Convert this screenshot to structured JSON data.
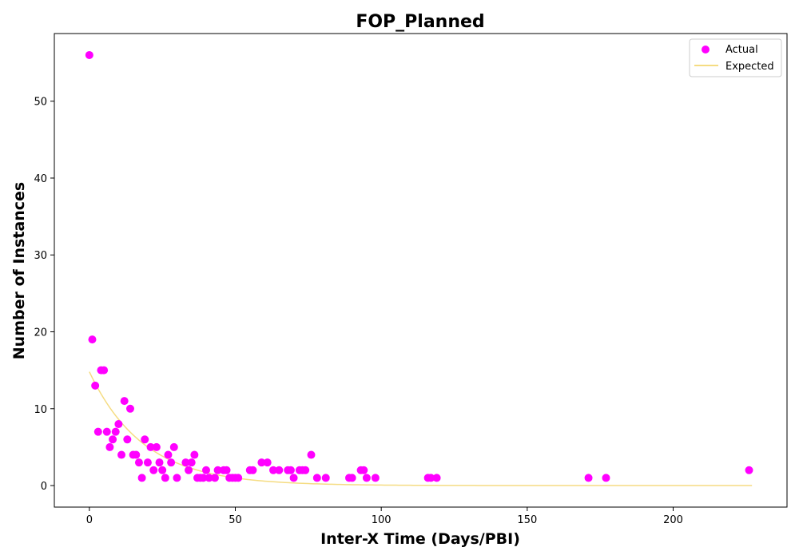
{
  "chart_data": {
    "type": "scatter",
    "title": "FOP_Planned",
    "xlabel": "Inter-X Time (Days/PBI)",
    "ylabel": "Number of Instances",
    "xlim": [
      -12,
      239
    ],
    "ylim": [
      -2.8,
      58.8
    ],
    "xticks": [
      0,
      50,
      100,
      150,
      200
    ],
    "yticks": [
      0,
      10,
      20,
      30,
      40,
      50
    ],
    "grid": false,
    "legend_position": "top-right",
    "colors": {
      "actual": "#ff00ff",
      "expected": "#f5dc82"
    },
    "series": [
      {
        "name": "Actual",
        "kind": "scatter",
        "x": [
          0,
          1,
          2,
          3,
          4,
          5,
          6,
          7,
          8,
          9,
          10,
          11,
          12,
          13,
          14,
          15,
          16,
          17,
          18,
          19,
          20,
          21,
          22,
          23,
          24,
          25,
          26,
          27,
          28,
          29,
          30,
          33,
          34,
          35,
          36,
          37,
          38,
          39,
          40,
          41,
          43,
          44,
          46,
          47,
          48,
          49,
          50,
          51,
          55,
          56,
          59,
          61,
          63,
          65,
          68,
          69,
          70,
          72,
          73,
          74,
          76,
          78,
          81,
          89,
          90,
          93,
          94,
          95,
          98,
          116,
          117,
          119,
          171,
          177,
          226
        ],
        "y": [
          56,
          19,
          13,
          7,
          15,
          15,
          7,
          5,
          6,
          7,
          8,
          4,
          11,
          6,
          10,
          4,
          4,
          3,
          1,
          6,
          3,
          5,
          2,
          5,
          3,
          2,
          1,
          4,
          3,
          5,
          1,
          3,
          2,
          3,
          4,
          1,
          1,
          1,
          2,
          1,
          1,
          2,
          2,
          2,
          1,
          1,
          1,
          1,
          2,
          2,
          3,
          3,
          2,
          2,
          2,
          2,
          1,
          2,
          2,
          2,
          4,
          1,
          1,
          1,
          1,
          2,
          2,
          1,
          1,
          1,
          1,
          1,
          1,
          1,
          2
        ]
      },
      {
        "name": "Expected",
        "kind": "line",
        "model": {
          "a": 14.8,
          "k": 0.054
        },
        "x_range": [
          0,
          227
        ]
      }
    ]
  }
}
